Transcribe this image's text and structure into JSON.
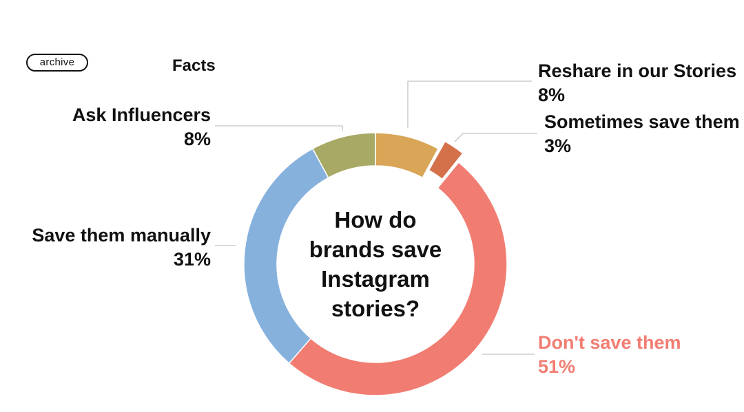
{
  "header": {
    "badge": "archive",
    "section": "Facts"
  },
  "colors": {
    "reshare": "#d9a556",
    "sometimes": "#d4704a",
    "dont_save": "#f17d72",
    "manual": "#86b1dd",
    "influencers": "#a7a965",
    "leader": "#c4c4c4"
  },
  "chart_data": {
    "type": "pie",
    "variant": "donut",
    "title": "How do brands save Instagram stories?",
    "title_lines": [
      "How do",
      "brands save",
      "Instagram",
      "stories?"
    ],
    "slices": [
      {
        "label": "Reshare in our Stories",
        "value": 8,
        "value_label": "8%",
        "color": "#d9a556"
      },
      {
        "label": "Sometimes save them",
        "value": 3,
        "value_label": "3%",
        "color": "#d4704a",
        "exploded": true
      },
      {
        "label": "Don't save them",
        "value": 51,
        "value_label": "51%",
        "color": "#f17d72"
      },
      {
        "label": "Save them manually",
        "value": 31,
        "value_label": "31%",
        "color": "#86b1dd"
      },
      {
        "label": "Ask Influencers",
        "value": 8,
        "value_label": "8%",
        "color": "#a7a965"
      }
    ]
  }
}
